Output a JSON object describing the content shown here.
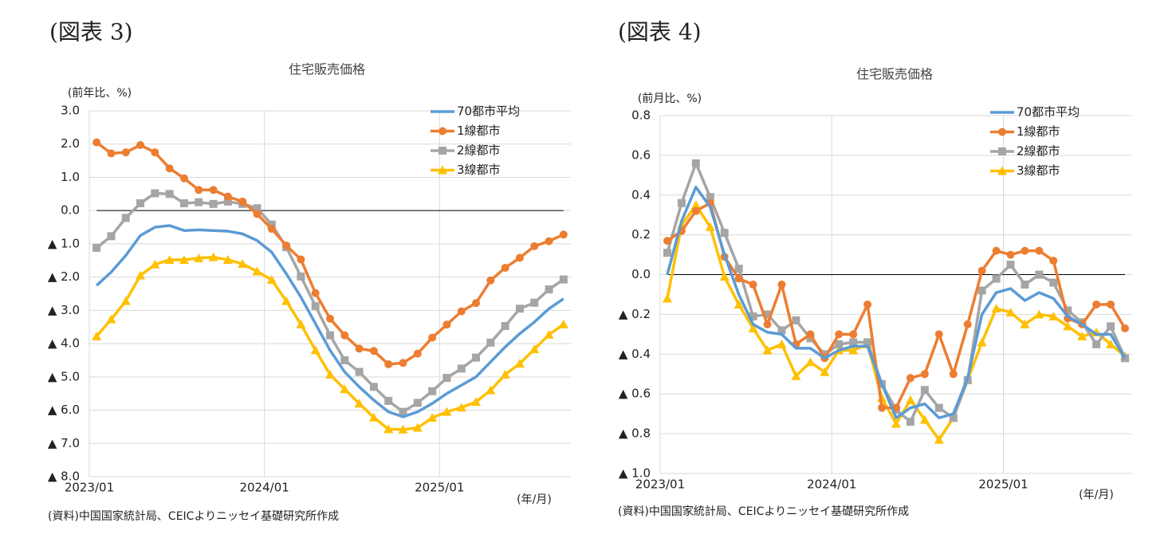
{
  "chart_data": [
    {
      "type": "line",
      "label": "(図表 3)",
      "title": "住宅販売価格",
      "y_label": "(前年比、%)",
      "x_label": "(年/月)",
      "source": "(資料)中国国家統計局、CEICよりニッセイ基礎研究所作成",
      "categories": [
        "2023/01",
        null,
        null,
        null,
        null,
        null,
        null,
        null,
        null,
        null,
        null,
        null,
        "2024/01",
        null,
        null,
        null,
        null,
        null,
        null,
        null,
        null,
        null,
        null,
        null,
        "2025/01",
        null,
        null,
        null,
        null,
        null,
        null,
        null,
        null
      ],
      "ylim": [
        -8,
        3
      ],
      "yticks": [
        {
          "value": 3,
          "label": "3.0"
        },
        {
          "value": 2,
          "label": "2.0"
        },
        {
          "value": 1,
          "label": "1.0"
        },
        {
          "value": 0,
          "label": "0.0"
        },
        {
          "value": -1,
          "label": "▲ 1.0"
        },
        {
          "value": -2,
          "label": "▲ 2.0"
        },
        {
          "value": -3,
          "label": "▲ 3.0"
        },
        {
          "value": -4,
          "label": "▲ 4.0"
        },
        {
          "value": -5,
          "label": "▲ 5.0"
        },
        {
          "value": -6,
          "label": "▲ 6.0"
        },
        {
          "value": -7,
          "label": "▲ 7.0"
        },
        {
          "value": -8,
          "label": "▲ 8.0"
        }
      ],
      "grid": true,
      "legend": "upper right",
      "series": [
        {
          "name": "70都市平均",
          "color": "#5b9bd5",
          "marker": "none",
          "values": [
            -2.25,
            -1.85,
            -1.35,
            -0.75,
            -0.5,
            -0.45,
            -0.6,
            -0.58,
            -0.6,
            -0.62,
            -0.7,
            -0.9,
            -1.25,
            -1.9,
            -2.6,
            -3.4,
            -4.2,
            -4.85,
            -5.3,
            -5.7,
            -6.05,
            -6.2,
            -6.05,
            -5.8,
            -5.5,
            -5.25,
            -5.0,
            -4.55,
            -4.1,
            -3.7,
            -3.35,
            -2.95,
            -2.65
          ]
        },
        {
          "name": "1線都市",
          "color": "#ed7d31",
          "marker": "circle",
          "values": [
            2.05,
            1.72,
            1.75,
            1.97,
            1.75,
            1.27,
            0.97,
            0.62,
            0.62,
            0.42,
            0.27,
            -0.1,
            -0.55,
            -1.05,
            -1.47,
            -2.48,
            -3.25,
            -3.75,
            -4.15,
            -4.22,
            -4.62,
            -4.58,
            -4.3,
            -3.82,
            -3.43,
            -3.03,
            -2.78,
            -2.1,
            -1.72,
            -1.42,
            -1.07,
            -0.92,
            -0.72
          ]
        },
        {
          "name": "2線都市",
          "color": "#a5a5a5",
          "marker": "square",
          "values": [
            -1.12,
            -0.77,
            -0.22,
            0.22,
            0.52,
            0.5,
            0.22,
            0.25,
            0.2,
            0.27,
            0.2,
            0.07,
            -0.42,
            -1.1,
            -1.98,
            -2.87,
            -3.75,
            -4.5,
            -4.85,
            -5.3,
            -5.72,
            -6.05,
            -5.78,
            -5.43,
            -5.03,
            -4.75,
            -4.42,
            -3.97,
            -3.47,
            -2.95,
            -2.77,
            -2.37,
            -2.07
          ]
        },
        {
          "name": "3線都市",
          "color": "#ffc000",
          "marker": "triangle",
          "values": [
            -3.78,
            -3.27,
            -2.72,
            -1.95,
            -1.62,
            -1.48,
            -1.48,
            -1.43,
            -1.4,
            -1.48,
            -1.6,
            -1.83,
            -2.08,
            -2.72,
            -3.42,
            -4.2,
            -4.93,
            -5.37,
            -5.8,
            -6.22,
            -6.57,
            -6.58,
            -6.53,
            -6.23,
            -6.05,
            -5.92,
            -5.75,
            -5.4,
            -4.93,
            -4.6,
            -4.17,
            -3.73,
            -3.42
          ]
        }
      ]
    },
    {
      "type": "line",
      "label": "(図表 4)",
      "title": "住宅販売価格",
      "y_label": "(前月比、%)",
      "x_label": "(年/月)",
      "source": "(資料)中国国家統計局、CEICよりニッセイ基礎研究所作成",
      "categories": [
        "2023/01",
        null,
        null,
        null,
        null,
        null,
        null,
        null,
        null,
        null,
        null,
        null,
        "2024/01",
        null,
        null,
        null,
        null,
        null,
        null,
        null,
        null,
        null,
        null,
        null,
        "2025/01",
        null,
        null,
        null,
        null,
        null,
        null,
        null,
        null
      ],
      "ylim": [
        -1,
        0.8
      ],
      "yticks": [
        {
          "value": 0.8,
          "label": "0.8"
        },
        {
          "value": 0.6,
          "label": "0.6"
        },
        {
          "value": 0.4,
          "label": "0.4"
        },
        {
          "value": 0.2,
          "label": "0.2"
        },
        {
          "value": 0,
          "label": "0.0"
        },
        {
          "value": -0.2,
          "label": "▲ 0.2"
        },
        {
          "value": -0.4,
          "label": "▲ 0.4"
        },
        {
          "value": -0.6,
          "label": "▲ 0.6"
        },
        {
          "value": -0.8,
          "label": "▲ 0.8"
        },
        {
          "value": -1,
          "label": "▲ 1.0"
        }
      ],
      "grid": true,
      "legend": "upper right",
      "series": [
        {
          "name": "70都市平均",
          "color": "#5b9bd5",
          "marker": "none",
          "values": [
            0.0,
            0.27,
            0.44,
            0.34,
            0.1,
            -0.1,
            -0.25,
            -0.29,
            -0.3,
            -0.37,
            -0.37,
            -0.42,
            -0.38,
            -0.36,
            -0.36,
            -0.55,
            -0.72,
            -0.67,
            -0.65,
            -0.72,
            -0.7,
            -0.52,
            -0.2,
            -0.09,
            -0.07,
            -0.13,
            -0.09,
            -0.12,
            -0.21,
            -0.25,
            -0.3,
            -0.3,
            -0.42
          ]
        },
        {
          "name": "1線都市",
          "color": "#ed7d31",
          "marker": "circle",
          "values": [
            0.17,
            0.22,
            0.32,
            0.36,
            0.09,
            -0.02,
            -0.05,
            -0.25,
            -0.05,
            -0.35,
            -0.3,
            -0.42,
            -0.3,
            -0.3,
            -0.15,
            -0.67,
            -0.67,
            -0.52,
            -0.5,
            -0.3,
            -0.5,
            -0.25,
            0.02,
            0.12,
            0.1,
            0.12,
            0.12,
            0.07,
            -0.22,
            -0.25,
            -0.15,
            -0.15,
            -0.27
          ]
        },
        {
          "name": "2線都市",
          "color": "#a5a5a5",
          "marker": "square",
          "values": [
            0.11,
            0.36,
            0.56,
            0.39,
            0.21,
            0.03,
            -0.21,
            -0.2,
            -0.28,
            -0.23,
            -0.32,
            -0.4,
            -0.35,
            -0.34,
            -0.34,
            -0.55,
            -0.68,
            -0.74,
            -0.58,
            -0.67,
            -0.72,
            -0.53,
            -0.08,
            -0.02,
            0.05,
            -0.05,
            0.0,
            -0.04,
            -0.18,
            -0.24,
            -0.35,
            -0.26,
            -0.42
          ]
        },
        {
          "name": "3線都市",
          "color": "#ffc000",
          "marker": "triangle",
          "values": [
            -0.12,
            0.25,
            0.35,
            0.24,
            -0.01,
            -0.15,
            -0.27,
            -0.38,
            -0.35,
            -0.51,
            -0.44,
            -0.49,
            -0.38,
            -0.38,
            -0.35,
            -0.62,
            -0.75,
            -0.63,
            -0.73,
            -0.83,
            -0.72,
            -0.53,
            -0.34,
            -0.17,
            -0.19,
            -0.25,
            -0.2,
            -0.21,
            -0.26,
            -0.31,
            -0.29,
            -0.35,
            -0.41
          ]
        }
      ]
    }
  ]
}
